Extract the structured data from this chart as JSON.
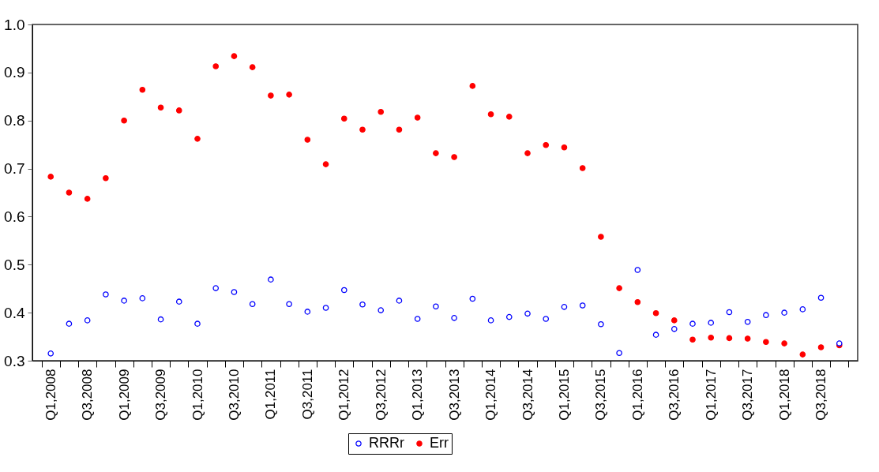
{
  "chart_data": {
    "type": "scatter",
    "categories": [
      "Q1,2008",
      null,
      "Q3,2008",
      null,
      "Q1,2009",
      null,
      "Q3,2009",
      null,
      "Q1,2010",
      null,
      "Q3,2010",
      null,
      "Q1,2011",
      null,
      "Q3,2011",
      null,
      "Q1,2012",
      null,
      "Q3,2012",
      null,
      "Q1,2013",
      null,
      "Q3,2013",
      null,
      "Q1,2014",
      null,
      "Q3,2014",
      null,
      "Q1,2015",
      null,
      "Q3,2015",
      null,
      "Q1,2016",
      null,
      "Q3,2016",
      null,
      "Q1,2017",
      null,
      "Q3,2017",
      null,
      "Q1,2018",
      null,
      "Q3,2018",
      null
    ],
    "series": [
      {
        "name": "RRRr",
        "color": "#0000ff",
        "values": [
          0.315,
          0.377,
          0.384,
          0.438,
          0.425,
          0.43,
          0.386,
          0.423,
          0.377,
          0.451,
          0.443,
          0.418,
          0.469,
          0.418,
          0.402,
          0.41,
          0.447,
          0.417,
          0.405,
          0.425,
          0.387,
          0.413,
          0.389,
          0.429,
          0.384,
          0.391,
          0.398,
          0.387,
          0.412,
          0.415,
          0.376,
          0.316,
          0.489,
          0.354,
          0.366,
          0.377,
          0.379,
          0.401,
          0.381,
          0.395,
          0.4,
          0.407,
          0.431,
          0.336
        ]
      },
      {
        "name": "Err",
        "color": "#ff0000",
        "values": [
          0.683,
          0.65,
          0.637,
          0.68,
          0.8,
          0.864,
          0.827,
          0.821,
          0.762,
          0.913,
          0.934,
          0.911,
          0.852,
          0.854,
          0.76,
          0.709,
          0.804,
          0.781,
          0.818,
          0.781,
          0.806,
          0.732,
          0.724,
          0.872,
          0.813,
          0.808,
          0.732,
          0.749,
          0.744,
          0.701,
          0.558,
          0.451,
          0.422,
          0.399,
          0.384,
          0.344,
          0.348,
          0.347,
          0.346,
          0.339,
          0.336,
          0.313,
          0.328,
          0.332
        ]
      }
    ],
    "ylim": [
      0.3,
      1.0
    ],
    "yticks": [
      0.3,
      0.4,
      0.5,
      0.6,
      0.7,
      0.8,
      0.9,
      {
        "value": 1.0,
        "label": "1.0"
      }
    ],
    "grid": false,
    "legend": "bottom",
    "marker": "circle"
  }
}
